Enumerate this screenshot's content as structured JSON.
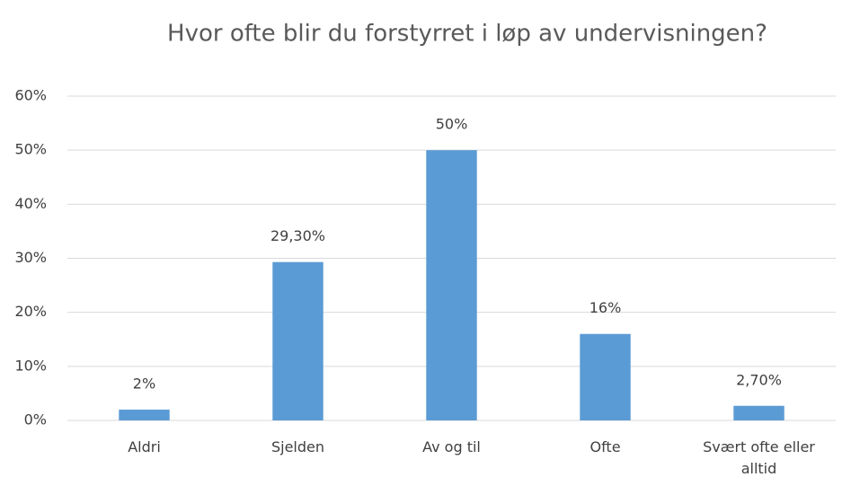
{
  "chart_data": {
    "type": "bar",
    "title": "Hvor ofte blir du forstyrret i løp av undervisningen?",
    "categories": [
      "Aldri",
      "Sjelden",
      "Av og til",
      "Ofte",
      "Svært ofte eller alltid"
    ],
    "values": [
      2,
      29.3,
      50,
      16,
      2.7
    ],
    "value_labels": [
      "2%",
      "29,30%",
      "50%",
      "16%",
      "2,70%"
    ],
    "color": "#5b9bd5",
    "ylim": [
      0,
      60
    ],
    "yticks": [
      {
        "value": 0,
        "label": "0%"
      },
      {
        "value": 10,
        "label": "10%"
      },
      {
        "value": 20,
        "label": "20%"
      },
      {
        "value": 30,
        "label": "30%"
      },
      {
        "value": 40,
        "label": "40%"
      },
      {
        "value": 50,
        "label": "50%"
      },
      {
        "value": 60,
        "label": "60%"
      }
    ],
    "grid": true
  }
}
